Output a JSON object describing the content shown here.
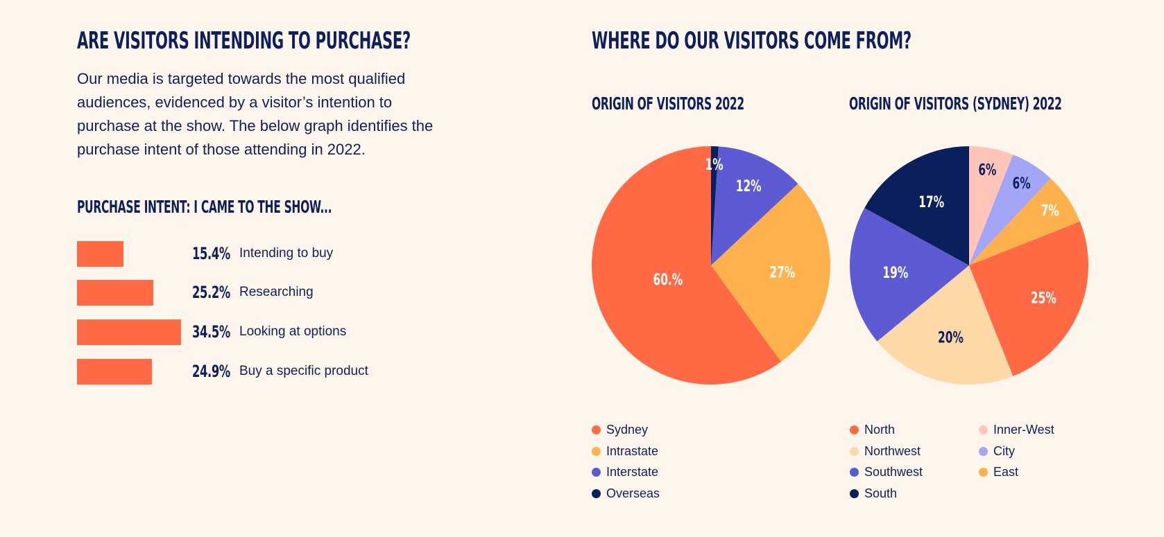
{
  "left": {
    "heading": "ARE VISITORS INTENDING TO PURCHASE?",
    "intro": "Our media is targeted towards the most qualified audiences, evidenced by a visitor’s intention to purchase at the show. The below graph identifies the purchase intent of those attending in 2022.",
    "chart_title": "PURCHASE INTENT: I CAME TO THE SHOW..."
  },
  "right": {
    "heading": "WHERE DO OUR VISITORS COME FROM?"
  },
  "colors": {
    "orange": "#ff6a45",
    "yellow": "#ffb14e",
    "purple": "#5c5bd4",
    "navy": "#0b1f5c",
    "peach": "#ffd8a8",
    "pink": "#ffc5b8",
    "lavender": "#a3a6f6"
  },
  "chart_data": [
    {
      "type": "bar",
      "title": "PURCHASE INTENT: I CAME TO THE SHOW...",
      "categories": [
        "Intending to buy",
        "Researching",
        "Looking at options",
        "Buy a specific product"
      ],
      "values": [
        15.4,
        25.2,
        34.5,
        24.9
      ],
      "value_labels": [
        "15.4%",
        "25.2%",
        "34.5%",
        "24.9%"
      ],
      "orientation": "horizontal",
      "color": "#ff6a45",
      "grid": false
    },
    {
      "type": "pie",
      "title": "ORIGIN OF VISITORS 2022",
      "legend_position": "bottom",
      "slices": [
        {
          "label": "Sydney",
          "value": 60.0,
          "text": "60.%",
          "color": "#ff6a45",
          "label_color": "#ffffff"
        },
        {
          "label": "Intrastate",
          "value": 27,
          "text": "27%",
          "color": "#ffb14e",
          "label_color": "#ffffff"
        },
        {
          "label": "Interstate",
          "value": 12,
          "text": "12%",
          "color": "#5c5bd4",
          "label_color": "#ffffff"
        },
        {
          "label": "Overseas",
          "value": 1,
          "text": "1%",
          "color": "#0b1f5c",
          "label_color": "#ffffff"
        }
      ]
    },
    {
      "type": "pie",
      "title": "ORIGIN OF VISITORS (SYDNEY) 2022",
      "legend_position": "bottom",
      "slices": [
        {
          "label": "Inner-West",
          "value": 6,
          "text": "6%",
          "color": "#ffc5b8",
          "label_color": "#0d1f5c"
        },
        {
          "label": "City",
          "value": 6,
          "text": "6%",
          "color": "#a3a6f6",
          "label_color": "#0d1f5c"
        },
        {
          "label": "East",
          "value": 7,
          "text": "7%",
          "color": "#ffb14e",
          "label_color": "#ffffff"
        },
        {
          "label": "North",
          "value": 25,
          "text": "25%",
          "color": "#ff6a45",
          "label_color": "#ffffff"
        },
        {
          "label": "Northwest",
          "value": 20,
          "text": "20%",
          "color": "#ffd8a8",
          "label_color": "#0d1f5c"
        },
        {
          "label": "Southwest",
          "value": 19,
          "text": "19%",
          "color": "#5c5bd4",
          "label_color": "#ffffff"
        },
        {
          "label": "South",
          "value": 17,
          "text": "17%",
          "color": "#0b1f5c",
          "label_color": "#ffffff"
        }
      ],
      "legend_order": [
        "North",
        "Northwest",
        "Southwest",
        "South",
        "Inner-West",
        "City",
        "East"
      ]
    }
  ]
}
